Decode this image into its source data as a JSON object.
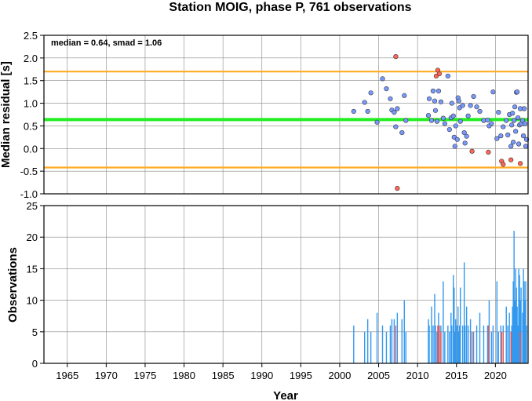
{
  "chart_data": [
    {
      "type": "scatter",
      "title": "Station MOIG, phase P, 761 observations",
      "xlabel": "",
      "ylabel": "Median residual [s]",
      "annotation": "median = 0.64, smad = 1.06",
      "xlim": [
        1962,
        2024.2
      ],
      "ylim": [
        -1.0,
        2.5
      ],
      "xticks": [
        1965,
        1970,
        1975,
        1980,
        1985,
        1990,
        1995,
        2000,
        2005,
        2010,
        2015,
        2020
      ],
      "yticks": [
        -1.0,
        -0.5,
        0.0,
        0.5,
        1.0,
        1.5,
        2.0,
        2.5
      ],
      "ytick_labels": [
        "-1.0",
        "-0.5",
        "0.0",
        "0.5",
        "1.0",
        "1.5",
        "2.0",
        "2.5"
      ],
      "grid": true,
      "reference_lines": [
        {
          "y": 0.64,
          "color": "#22ee22"
        },
        {
          "y": 1.7,
          "color": "#ffaa22"
        },
        {
          "y": -0.42,
          "color": "#ffaa22"
        }
      ],
      "series": [
        {
          "color": "#7799ff",
          "points": [
            [
              2001.8,
              0.82
            ],
            [
              2003.2,
              1.02
            ],
            [
              2003.6,
              0.82
            ],
            [
              2004.0,
              1.23
            ],
            [
              2004.8,
              0.58
            ],
            [
              2005.5,
              1.54
            ],
            [
              2006.0,
              1.32
            ],
            [
              2006.5,
              1.1
            ],
            [
              2006.7,
              0.85
            ],
            [
              2007.0,
              0.8
            ],
            [
              2007.2,
              0.48
            ],
            [
              2007.4,
              0.88
            ],
            [
              2008.0,
              0.35
            ],
            [
              2008.3,
              1.17
            ],
            [
              2008.5,
              0.62
            ],
            [
              2011.4,
              0.73
            ],
            [
              2011.5,
              1.1
            ],
            [
              2011.8,
              0.62
            ],
            [
              2012.0,
              1.27
            ],
            [
              2012.2,
              1.05
            ],
            [
              2012.3,
              0.84
            ],
            [
              2012.5,
              0.6
            ],
            [
              2012.7,
              1.27
            ],
            [
              2013.0,
              1.03
            ],
            [
              2013.3,
              0.67
            ],
            [
              2013.5,
              0.55
            ],
            [
              2013.9,
              1.6
            ],
            [
              2014.1,
              0.42
            ],
            [
              2014.3,
              0.68
            ],
            [
              2014.4,
              1.0
            ],
            [
              2014.6,
              0.72
            ],
            [
              2014.7,
              0.25
            ],
            [
              2014.8,
              0.05
            ],
            [
              2014.9,
              0.5
            ],
            [
              2015.1,
              0.2
            ],
            [
              2015.2,
              1.12
            ],
            [
              2015.3,
              1.05
            ],
            [
              2015.4,
              0.9
            ],
            [
              2015.5,
              0.6
            ],
            [
              2015.8,
              0.95
            ],
            [
              2016.0,
              0.35
            ],
            [
              2016.1,
              0.12
            ],
            [
              2016.3,
              0.27
            ],
            [
              2016.5,
              0.72
            ],
            [
              2016.8,
              0.95
            ],
            [
              2017.2,
              1.15
            ],
            [
              2017.6,
              0.92
            ],
            [
              2018.0,
              0.82
            ],
            [
              2018.5,
              0.62
            ],
            [
              2019.0,
              0.63
            ],
            [
              2019.2,
              0.5
            ],
            [
              2019.5,
              0.55
            ],
            [
              2019.7,
              1.25
            ],
            [
              2020.2,
              0.22
            ],
            [
              2020.4,
              0.8
            ],
            [
              2020.7,
              0.28
            ],
            [
              2021.0,
              0.48
            ],
            [
              2021.4,
              0.62
            ],
            [
              2021.6,
              0.3
            ],
            [
              2021.8,
              0.75
            ],
            [
              2022.0,
              0.05
            ],
            [
              2022.1,
              0.52
            ],
            [
              2022.2,
              0.78
            ],
            [
              2022.3,
              0.14
            ],
            [
              2022.4,
              0.62
            ],
            [
              2022.5,
              0.92
            ],
            [
              2022.6,
              0.38
            ],
            [
              2022.7,
              1.24
            ],
            [
              2022.8,
              1.25
            ],
            [
              2022.9,
              0.68
            ],
            [
              2023.0,
              0.1
            ],
            [
              2023.1,
              0.52
            ],
            [
              2023.2,
              0.88
            ],
            [
              2023.3,
              0.55
            ],
            [
              2023.5,
              0.62
            ],
            [
              2023.6,
              0.28
            ],
            [
              2023.7,
              0.88
            ],
            [
              2023.8,
              0.55
            ],
            [
              2023.9,
              0.05
            ],
            [
              2024.0,
              0.2
            ]
          ]
        },
        {
          "color": "#ff6655",
          "points": [
            [
              2007.2,
              2.03
            ],
            [
              2007.4,
              -0.88
            ],
            [
              2012.4,
              1.6
            ],
            [
              2012.6,
              1.73
            ],
            [
              2012.8,
              1.65
            ],
            [
              2017.0,
              -0.06
            ],
            [
              2019.1,
              -0.08
            ],
            [
              2020.8,
              -0.28
            ],
            [
              2021.0,
              -0.35
            ],
            [
              2022.0,
              -0.25
            ],
            [
              2023.2,
              -0.33
            ]
          ]
        }
      ]
    },
    {
      "type": "bar",
      "xlabel": "Year",
      "ylabel": "Observations",
      "xlim": [
        1962,
        2024.2
      ],
      "ylim": [
        0,
        25
      ],
      "xticks": [
        1965,
        1970,
        1975,
        1980,
        1985,
        1990,
        1995,
        2000,
        2005,
        2010,
        2015,
        2020
      ],
      "yticks": [
        0,
        5,
        10,
        15,
        20,
        25
      ],
      "grid": true,
      "series": [
        {
          "color": "#3399ee",
          "bars": [
            [
              2001.8,
              6
            ],
            [
              2003.2,
              5
            ],
            [
              2003.6,
              7
            ],
            [
              2004.0,
              5
            ],
            [
              2004.8,
              8
            ],
            [
              2005.5,
              6
            ],
            [
              2006.0,
              5
            ],
            [
              2006.5,
              6
            ],
            [
              2006.7,
              7
            ],
            [
              2007.0,
              7
            ],
            [
              2007.4,
              8
            ],
            [
              2008.0,
              7
            ],
            [
              2008.3,
              10
            ],
            [
              2008.5,
              5
            ],
            [
              2011.4,
              7
            ],
            [
              2011.5,
              6
            ],
            [
              2011.8,
              9
            ],
            [
              2012.0,
              6
            ],
            [
              2012.2,
              11
            ],
            [
              2012.3,
              6
            ],
            [
              2012.5,
              5
            ],
            [
              2012.7,
              8
            ],
            [
              2013.0,
              6
            ],
            [
              2013.3,
              13
            ],
            [
              2013.5,
              5
            ],
            [
              2013.9,
              6
            ],
            [
              2014.1,
              5
            ],
            [
              2014.3,
              8
            ],
            [
              2014.4,
              6
            ],
            [
              2014.6,
              14
            ],
            [
              2014.7,
              12
            ],
            [
              2014.8,
              5
            ],
            [
              2014.9,
              7
            ],
            [
              2015.1,
              6
            ],
            [
              2015.2,
              9
            ],
            [
              2015.3,
              5
            ],
            [
              2015.4,
              6
            ],
            [
              2015.5,
              12
            ],
            [
              2015.8,
              6
            ],
            [
              2016.0,
              16
            ],
            [
              2016.1,
              6
            ],
            [
              2016.3,
              9
            ],
            [
              2016.5,
              6
            ],
            [
              2016.8,
              7
            ],
            [
              2017.2,
              5
            ],
            [
              2017.6,
              6
            ],
            [
              2018.0,
              8
            ],
            [
              2018.5,
              6
            ],
            [
              2019.0,
              6
            ],
            [
              2019.2,
              10
            ],
            [
              2019.5,
              5
            ],
            [
              2019.7,
              6
            ],
            [
              2020.2,
              13
            ],
            [
              2020.4,
              5
            ],
            [
              2020.7,
              6
            ],
            [
              2021.0,
              6
            ],
            [
              2021.4,
              9
            ],
            [
              2021.6,
              6
            ],
            [
              2021.8,
              8
            ],
            [
              2022.0,
              5
            ],
            [
              2022.1,
              6
            ],
            [
              2022.2,
              9
            ],
            [
              2022.3,
              13
            ],
            [
              2022.4,
              21
            ],
            [
              2022.5,
              10
            ],
            [
              2022.6,
              15
            ],
            [
              2022.7,
              12
            ],
            [
              2022.8,
              9
            ],
            [
              2022.9,
              6
            ],
            [
              2023.0,
              15
            ],
            [
              2023.1,
              14
            ],
            [
              2023.2,
              10
            ],
            [
              2023.3,
              12
            ],
            [
              2023.5,
              8
            ],
            [
              2023.6,
              15
            ],
            [
              2023.7,
              13
            ],
            [
              2023.8,
              10
            ],
            [
              2023.9,
              13
            ],
            [
              2024.0,
              6
            ]
          ]
        },
        {
          "color": "#ee5555",
          "bars": [
            [
              2007.2,
              6
            ],
            [
              2012.6,
              6
            ],
            [
              2012.8,
              6
            ],
            [
              2013.0,
              5
            ],
            [
              2017.0,
              5
            ],
            [
              2019.1,
              6
            ],
            [
              2020.8,
              5
            ],
            [
              2021.0,
              5
            ],
            [
              2022.0,
              5
            ],
            [
              2023.2,
              5
            ]
          ]
        }
      ]
    }
  ]
}
